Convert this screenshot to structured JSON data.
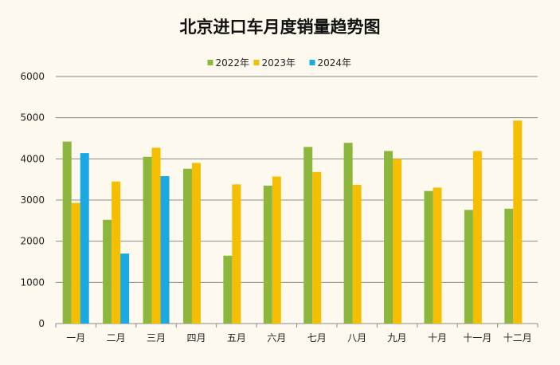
{
  "chart_data": {
    "type": "bar",
    "title": "北京进口车月度销量趋势图",
    "xlabel": "",
    "ylabel": "",
    "ylim": [
      0,
      6000
    ],
    "yticks": [
      0,
      1000,
      2000,
      3000,
      4000,
      5000,
      6000
    ],
    "grid": true,
    "legend_position": "top-center",
    "categories": [
      "一月",
      "二月",
      "三月",
      "四月",
      "五月",
      "六月",
      "七月",
      "八月",
      "九月",
      "十月",
      "十一月",
      "十二月"
    ],
    "series": [
      {
        "name": "2022年",
        "color": "#8db63c",
        "values": [
          4420,
          2520,
          4050,
          3760,
          1650,
          3350,
          4290,
          4390,
          4190,
          3220,
          2760,
          2790
        ]
      },
      {
        "name": "2023年",
        "color": "#f6be00",
        "values": [
          2930,
          3450,
          4270,
          3900,
          3380,
          3570,
          3680,
          3370,
          4000,
          3300,
          4190,
          4930
        ]
      },
      {
        "name": "2024年",
        "color": "#1aa9e0",
        "values": [
          4140,
          1700,
          3580,
          null,
          null,
          null,
          null,
          null,
          null,
          null,
          null,
          null
        ]
      }
    ]
  }
}
